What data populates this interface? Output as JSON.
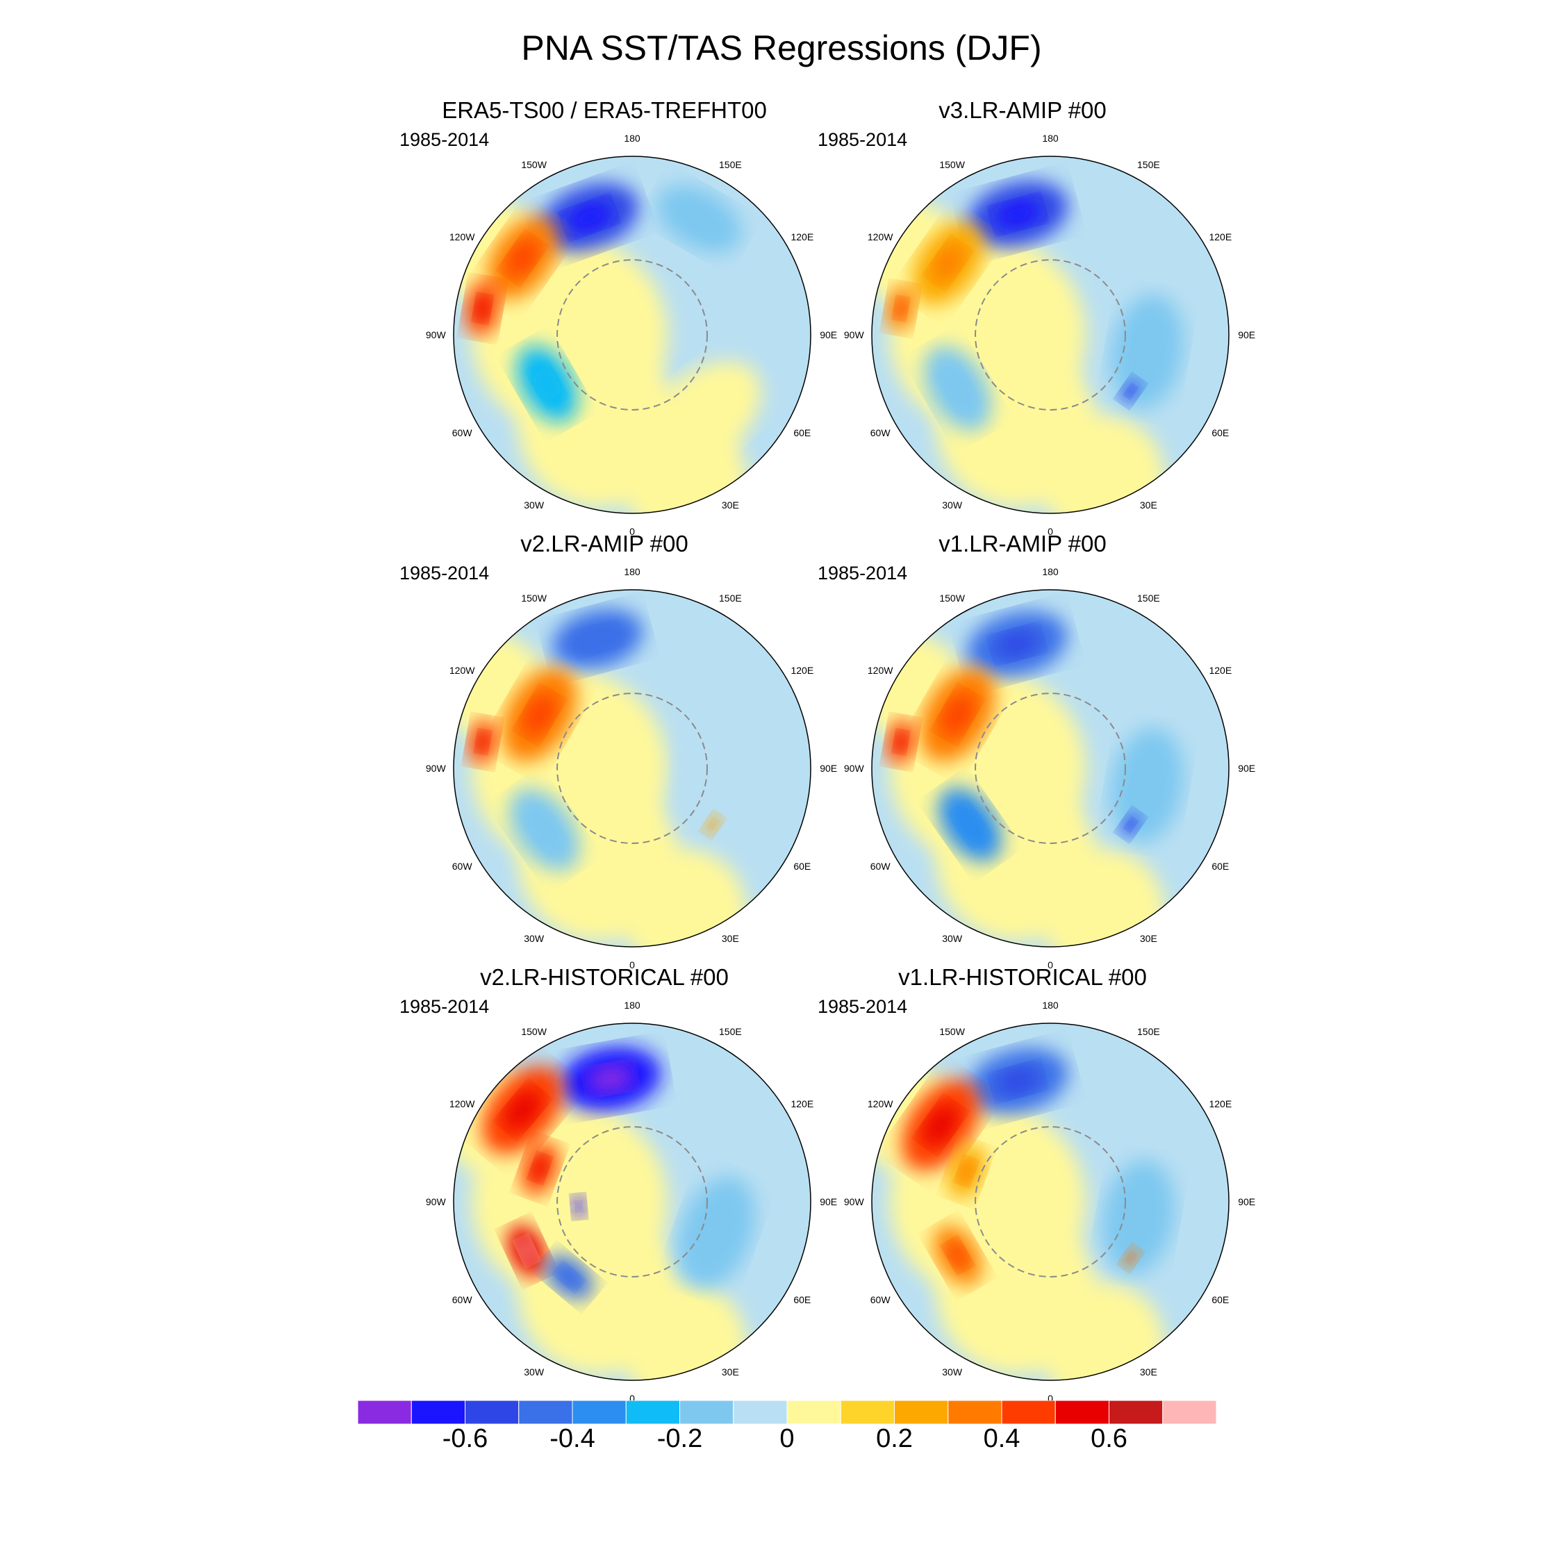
{
  "title": "PNA SST/TAS Regressions (DJF)",
  "chart_data": {
    "type": "heatmap",
    "projection": "north polar stereographic",
    "variable": "regression of SST/TAS onto PNA index (DJF)",
    "period": "1985-2014",
    "longitude_labels": [
      "180",
      "150E",
      "120E",
      "90E",
      "60E",
      "30E",
      "0",
      "30W",
      "60W",
      "90W",
      "120W",
      "150W"
    ],
    "panels": [
      {
        "title": "ERA5-TS00 / ERA5-TREFHT00",
        "period": "1985-2014",
        "features": [
          {
            "lon": -160,
            "r": 0.7,
            "value": -0.5,
            "size": 0.22
          },
          {
            "lon": -125,
            "r": 0.75,
            "value": 0.4,
            "size": 0.2
          },
          {
            "lon": -100,
            "r": 0.85,
            "value": 0.5,
            "size": 0.12
          },
          {
            "lon": -60,
            "r": 0.55,
            "value": -0.2,
            "size": 0.18
          },
          {
            "lon": 40,
            "r": 0.6,
            "value": 0.05,
            "size": 0.3
          },
          {
            "lon": 150,
            "r": 0.75,
            "value": -0.15,
            "size": 0.2
          }
        ]
      },
      {
        "title": "v3.LR-AMIP  #00",
        "period": "1985-2014",
        "features": [
          {
            "lon": -165,
            "r": 0.7,
            "value": -0.5,
            "size": 0.22
          },
          {
            "lon": -125,
            "r": 0.7,
            "value": 0.3,
            "size": 0.2
          },
          {
            "lon": -100,
            "r": 0.85,
            "value": 0.4,
            "size": 0.1
          },
          {
            "lon": -60,
            "r": 0.6,
            "value": -0.15,
            "size": 0.2
          },
          {
            "lon": 80,
            "r": 0.55,
            "value": -0.15,
            "size": 0.25
          },
          {
            "lon": 55,
            "r": 0.55,
            "value": -0.5,
            "size": 0.06
          }
        ]
      },
      {
        "title": "v2.LR-AMIP  #00",
        "period": "1985-2014",
        "features": [
          {
            "lon": -165,
            "r": 0.75,
            "value": -0.4,
            "size": 0.2
          },
          {
            "lon": -120,
            "r": 0.6,
            "value": 0.35,
            "size": 0.22
          },
          {
            "lon": -100,
            "r": 0.85,
            "value": 0.5,
            "size": 0.1
          },
          {
            "lon": -55,
            "r": 0.6,
            "value": -0.15,
            "size": 0.2
          },
          {
            "lon": 90,
            "r": 0.5,
            "value": -0.05,
            "size": 0.3
          },
          {
            "lon": 55,
            "r": 0.55,
            "value": 0.3,
            "size": 0.05
          }
        ]
      },
      {
        "title": "v1.LR-AMIP  #00",
        "period": "1985-2014",
        "features": [
          {
            "lon": -165,
            "r": 0.72,
            "value": -0.45,
            "size": 0.22
          },
          {
            "lon": -120,
            "r": 0.6,
            "value": 0.35,
            "size": 0.22
          },
          {
            "lon": -100,
            "r": 0.85,
            "value": 0.45,
            "size": 0.1
          },
          {
            "lon": -55,
            "r": 0.55,
            "value": -0.3,
            "size": 0.18
          },
          {
            "lon": 80,
            "r": 0.55,
            "value": -0.15,
            "size": 0.25
          },
          {
            "lon": 55,
            "r": 0.55,
            "value": -0.55,
            "size": 0.06
          }
        ]
      },
      {
        "title": "v2.LR-HISTORICAL  #00",
        "period": "1985-2014",
        "features": [
          {
            "lon": -170,
            "r": 0.7,
            "value": -0.6,
            "size": 0.22
          },
          {
            "lon": -130,
            "r": 0.8,
            "value": 0.5,
            "size": 0.22
          },
          {
            "lon": -110,
            "r": 0.55,
            "value": 0.45,
            "size": 0.12
          },
          {
            "lon": -65,
            "r": 0.65,
            "value": 0.6,
            "size": 0.12
          },
          {
            "lon": -40,
            "r": 0.55,
            "value": -0.4,
            "size": 0.12
          },
          {
            "lon": -85,
            "r": 0.3,
            "value": -0.6,
            "size": 0.05
          },
          {
            "lon": 70,
            "r": 0.5,
            "value": -0.15,
            "size": 0.25
          }
        ]
      },
      {
        "title": "v1.LR-HISTORICAL  #00",
        "period": "1985-2014",
        "features": [
          {
            "lon": -165,
            "r": 0.7,
            "value": -0.45,
            "size": 0.22
          },
          {
            "lon": -125,
            "r": 0.75,
            "value": 0.45,
            "size": 0.22
          },
          {
            "lon": -110,
            "r": 0.5,
            "value": 0.3,
            "size": 0.12
          },
          {
            "lon": -60,
            "r": 0.6,
            "value": 0.4,
            "size": 0.14
          },
          {
            "lon": 80,
            "r": 0.5,
            "value": -0.1,
            "size": 0.25
          },
          {
            "lon": 55,
            "r": 0.55,
            "value": 0.4,
            "size": 0.05
          }
        ]
      }
    ],
    "colorbar": {
      "levels": [
        -0.7,
        -0.6,
        -0.5,
        -0.4,
        -0.3,
        -0.2,
        -0.1,
        0,
        0.1,
        0.2,
        0.3,
        0.4,
        0.5,
        0.6,
        0.7
      ],
      "colors": [
        "#8a2be2",
        "#1a14ff",
        "#2e46e6",
        "#3a70e8",
        "#2b8ef0",
        "#10bcf5",
        "#7ec8f0",
        "#b9dff2",
        "#fff89a",
        "#fed42a",
        "#fca800",
        "#fe7b00",
        "#fe3c00",
        "#e80000",
        "#c71a1a",
        "#ffb6b6"
      ],
      "tick_labels": [
        "-0.6",
        "-0.4",
        "-0.2",
        "0",
        "0.2",
        "0.4",
        "0.6"
      ],
      "tick_values": [
        -0.6,
        -0.4,
        -0.2,
        0,
        0.2,
        0.4,
        0.6
      ]
    }
  }
}
